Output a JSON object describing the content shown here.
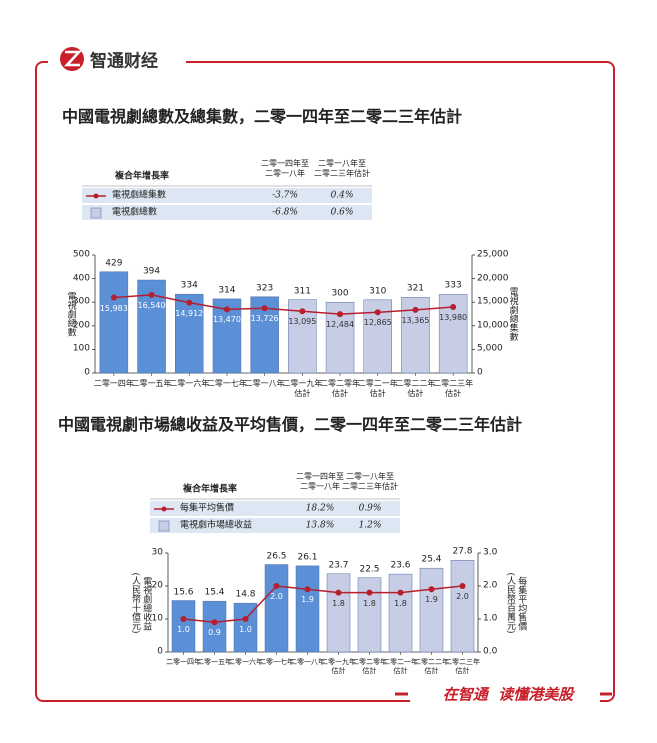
{
  "brand": "智通财经",
  "footer": "在智通  读懂港美股",
  "chart_data": [
    {
      "type": "bar_line",
      "title": "中國電視劇總數及總集數，二零一四年至二零二三年估計",
      "cagr_title": "複合年增長率",
      "cagr_columns": [
        "二零一四年至\n二零一八年",
        "二零一八年至\n二零二三年估計"
      ],
      "categories": [
        "二零一四年",
        "二零一五年",
        "二零一六年",
        "二零一七年",
        "二零一八年",
        "二零一九年\n估計",
        "二零二零年\n估計",
        "二零二一年\n估計",
        "二零二二年\n估計",
        "二零二三年\n估計"
      ],
      "ylabel": "電視劇總數",
      "y2label": "電視劇總集數",
      "ylim": [
        0,
        500
      ],
      "yticks": [
        0,
        100,
        200,
        300,
        400,
        500
      ],
      "y2lim": [
        0,
        25000
      ],
      "y2ticks": [
        0,
        {
          "value": 5000,
          "label": "5,000"
        },
        {
          "value": 10000,
          "label": "10,000"
        },
        {
          "value": 15000,
          "label": "15,000"
        },
        {
          "value": 20000,
          "label": "20,000"
        },
        {
          "value": 25000,
          "label": "25,000"
        }
      ],
      "series": [
        {
          "name": "電視劇總集數",
          "type": "line",
          "axis": "y2",
          "color": "#b51f2e",
          "values": [
            15983,
            16540,
            14912,
            13470,
            13726,
            13095,
            12484,
            12865,
            13365,
            13980
          ],
          "value_labels": [
            "15,983",
            "16,540",
            "14,912",
            "13,470",
            "13,726",
            "13,095",
            "12,484",
            "12,865",
            "13,365",
            "13,980"
          ],
          "cagr": [
            "-3.7%",
            "0.4%"
          ]
        },
        {
          "name": "電視劇總數",
          "type": "bar",
          "color": "#c7cde5",
          "colors": [
            "#5b8fd6",
            "#5b8fd6",
            "#5b8fd6",
            "#5b8fd6",
            "#5b8fd6",
            "#c7cde5",
            "#c7cde5",
            "#c7cde5",
            "#c7cde5",
            "#c7cde5"
          ],
          "values": [
            429,
            394,
            334,
            314,
            323,
            311,
            300,
            310,
            321,
            333
          ],
          "cagr": [
            "-6.8%",
            "0.6%"
          ]
        }
      ]
    },
    {
      "type": "bar_line",
      "title": "中國電視劇市場總收益及平均售價，二零一四年至二零二三年估計",
      "cagr_title": "複合年增長率",
      "cagr_columns": [
        "二零一四年至\n二零一八年",
        "二零一八年至\n二零二三年估計"
      ],
      "categories": [
        "二零一四年",
        "二零一五年",
        "二零一六年",
        "二零一七年",
        "二零一八年",
        "二零一九年\n估計",
        "二零二零年\n估計",
        "二零二一年\n估計",
        "二零二二年\n估計",
        "二零二三年\n估計"
      ],
      "ylabel": "電視劇總收益\n(人民幣十億元)",
      "y2label": "每集平均售價\n(人民幣百萬元)",
      "ylim": [
        0,
        30
      ],
      "yticks": [
        0,
        10,
        20,
        30
      ],
      "y2lim": [
        0,
        3
      ],
      "y2ticks": [
        {
          "value": 0,
          "label": "0.0"
        },
        {
          "value": 1,
          "label": "1.0"
        },
        {
          "value": 2,
          "label": "2.0"
        },
        {
          "value": 3,
          "label": "3.0"
        }
      ],
      "series": [
        {
          "name": "每集平均售價",
          "type": "line",
          "axis": "y2",
          "color": "#b51f2e",
          "values": [
            1.0,
            0.9,
            1.0,
            2.0,
            1.9,
            1.8,
            1.8,
            1.8,
            1.9,
            2.0
          ],
          "value_labels": [
            "1.0",
            "0.9",
            "1.0",
            "2.0",
            "1.9",
            "1.8",
            "1.8",
            "1.8",
            "1.9",
            "2.0"
          ],
          "cagr": [
            "18.2%",
            "0.9%"
          ]
        },
        {
          "name": "電視劇市場總收益",
          "type": "bar",
          "color": "#c7cde5",
          "colors": [
            "#5b8fd6",
            "#5b8fd6",
            "#5b8fd6",
            "#5b8fd6",
            "#5b8fd6",
            "#c7cde5",
            "#c7cde5",
            "#c7cde5",
            "#c7cde5",
            "#c7cde5"
          ],
          "values": [
            15.6,
            15.4,
            14.8,
            26.5,
            26.1,
            23.7,
            22.5,
            23.6,
            25.4,
            27.8
          ],
          "cagr": [
            "13.8%",
            "1.2%"
          ]
        }
      ]
    }
  ]
}
